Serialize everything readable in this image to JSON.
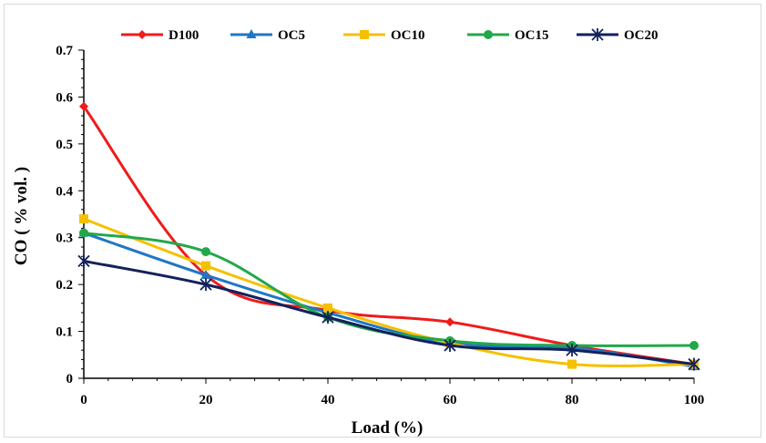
{
  "chart_data": {
    "type": "line",
    "title": "",
    "xlabel": "Load (%)",
    "ylabel": "CO ( % vol. )",
    "x": [
      0,
      20,
      40,
      60,
      80,
      100
    ],
    "xlim": [
      0,
      100
    ],
    "ylim": [
      0,
      0.7
    ],
    "x_ticks": [
      "0",
      "20",
      "40",
      "60",
      "80",
      "100"
    ],
    "y_ticks": [
      "0",
      "0.1",
      "0.2",
      "0.3",
      "0.4",
      "0.5",
      "0.6",
      "0.7"
    ],
    "grid": false,
    "legend_position": "top",
    "series": [
      {
        "name": "D100",
        "values": [
          0.58,
          0.22,
          0.145,
          0.12,
          0.07,
          0.03
        ],
        "color": "#ee1c1c",
        "marker": "diamond"
      },
      {
        "name": "OC5",
        "values": [
          0.31,
          0.22,
          0.14,
          0.075,
          0.065,
          0.025
        ],
        "color": "#1f77c4",
        "marker": "triangle"
      },
      {
        "name": "OC10",
        "values": [
          0.34,
          0.24,
          0.15,
          0.075,
          0.03,
          0.03
        ],
        "color": "#f5c000",
        "marker": "square"
      },
      {
        "name": "OC15",
        "values": [
          0.31,
          0.27,
          0.13,
          0.08,
          0.07,
          0.07
        ],
        "color": "#22a84a",
        "marker": "circle"
      },
      {
        "name": "OC20",
        "values": [
          0.25,
          0.2,
          0.13,
          0.07,
          0.06,
          0.03
        ],
        "color": "#14215c",
        "marker": "asterisk"
      }
    ]
  }
}
